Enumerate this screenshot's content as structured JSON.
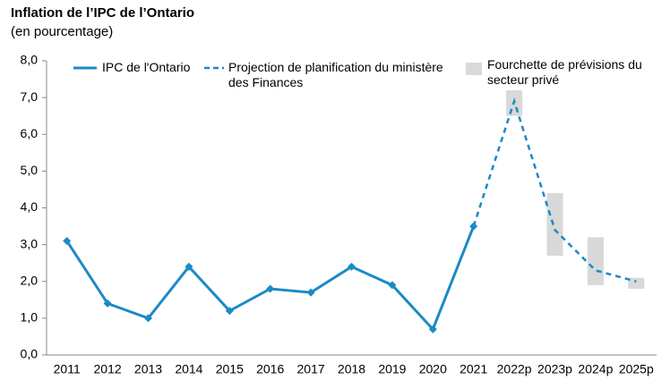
{
  "chart_data": {
    "type": "line",
    "title": "Inflation de l’IPC de l’Ontario",
    "subtitle": "(en pourcentage)",
    "categories": [
      "2011",
      "2012",
      "2013",
      "2014",
      "2015",
      "2016",
      "2017",
      "2018",
      "2019",
      "2020",
      "2021",
      "2022p",
      "2023p",
      "2024p",
      "2025p"
    ],
    "series": [
      {
        "name": "IPC de l'Ontario",
        "color": "#1b8ac6",
        "dashed": false,
        "markers": true,
        "values": [
          3.1,
          1.4,
          1.0,
          2.4,
          1.2,
          1.8,
          1.7,
          2.4,
          1.9,
          0.7,
          3.5,
          null,
          null,
          null,
          null
        ]
      },
      {
        "name": "Projection de planification du ministère des Finances",
        "color": "#1b8ac6",
        "dashed": true,
        "markers": false,
        "values": [
          null,
          null,
          null,
          null,
          null,
          null,
          null,
          null,
          null,
          null,
          3.5,
          6.9,
          3.4,
          2.3,
          2.0
        ]
      }
    ],
    "ranges": {
      "name": "Fourchette de prévisions du secteur privé",
      "color": "#d9d9d9",
      "low": [
        null,
        null,
        null,
        null,
        null,
        null,
        null,
        null,
        null,
        null,
        null,
        6.5,
        2.7,
        1.9,
        1.8
      ],
      "high": [
        null,
        null,
        null,
        null,
        null,
        null,
        null,
        null,
        null,
        null,
        null,
        7.2,
        4.4,
        3.2,
        2.1
      ]
    },
    "ylim": [
      0,
      8
    ],
    "yticks": [
      {
        "value": 0,
        "label": "0,0"
      },
      {
        "value": 1,
        "label": "1,0"
      },
      {
        "value": 2,
        "label": "2,0"
      },
      {
        "value": 3,
        "label": "3,0"
      },
      {
        "value": 4,
        "label": "4,0"
      },
      {
        "value": 5,
        "label": "5,0"
      },
      {
        "value": 6,
        "label": "6,0"
      },
      {
        "value": 7,
        "label": "7,0"
      },
      {
        "value": 8,
        "label": "8,0"
      }
    ],
    "grid": false
  }
}
